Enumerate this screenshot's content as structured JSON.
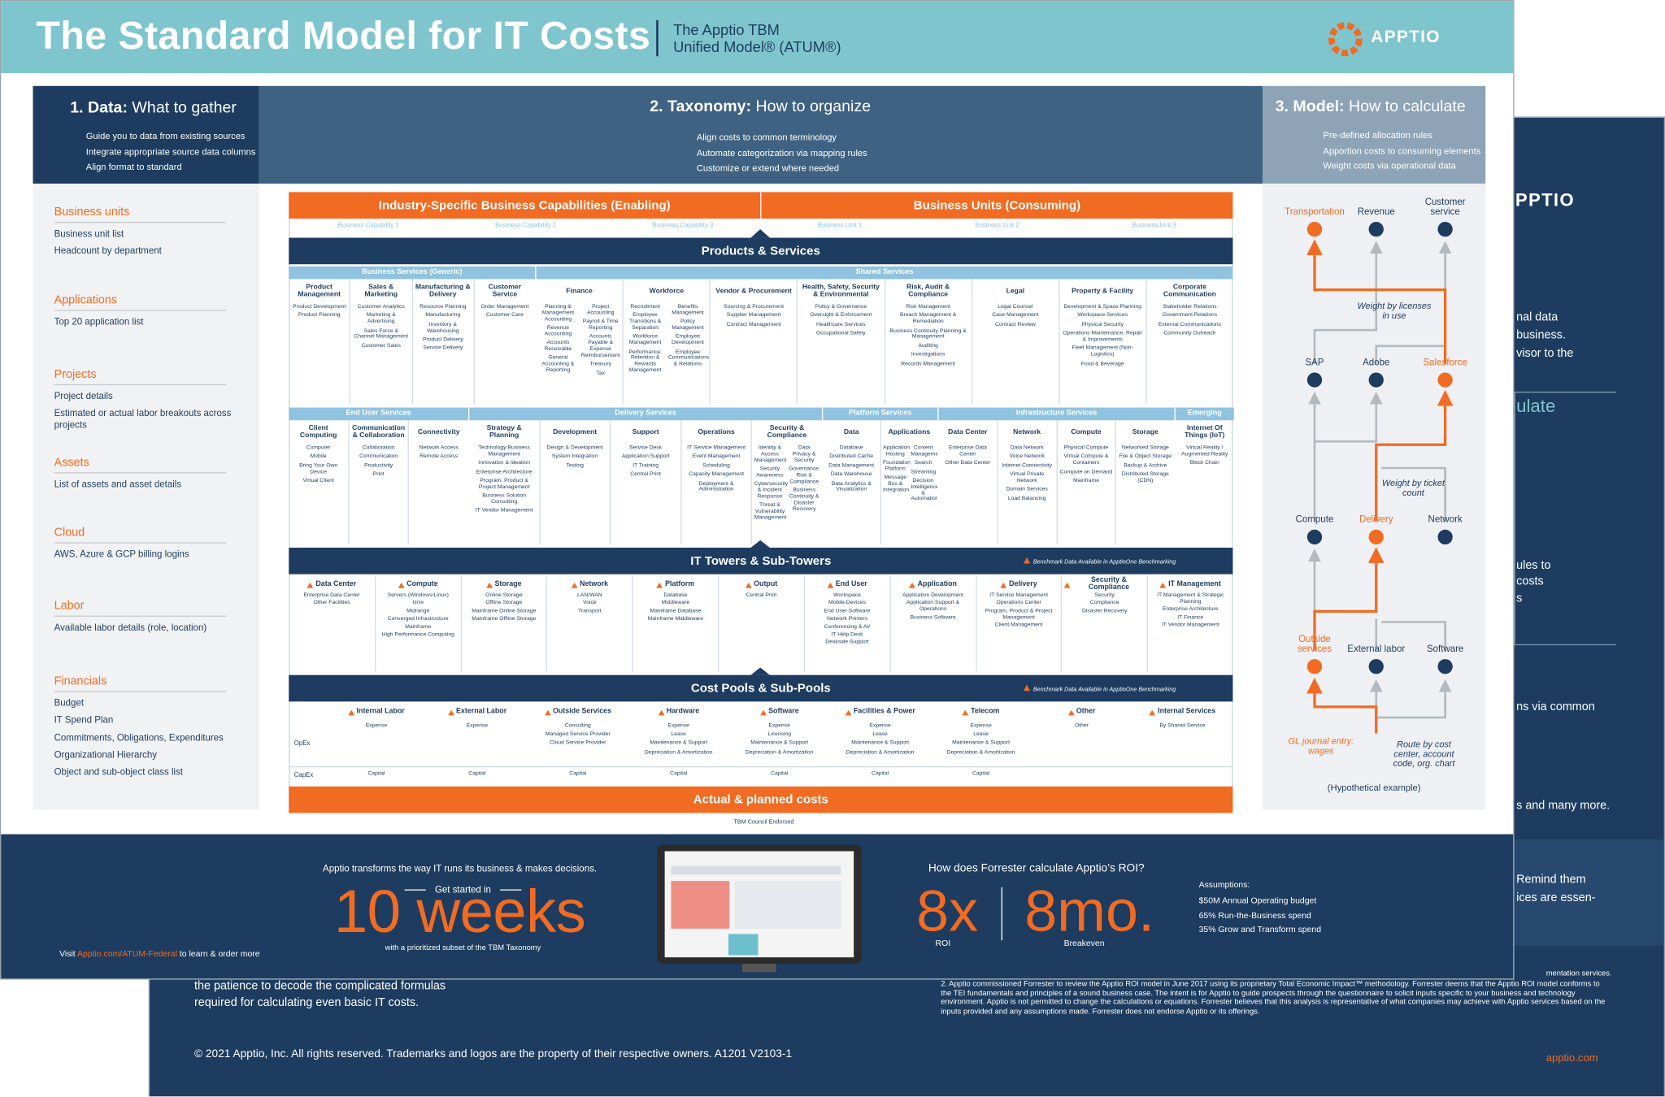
{
  "header": {
    "title": "The Standard Model for IT Costs",
    "subtitle": [
      "The Apptio TBM",
      "Unified Model® (ATUM®)"
    ],
    "logo": "APPTIO"
  },
  "panels": [
    {
      "number": "1. Data:",
      "title": "What to gather",
      "bullets": [
        "Guide you to data from existing sources",
        "Integrate appropriate source data columns",
        "Align format to standard"
      ]
    },
    {
      "number": "2. Taxonomy:",
      "title": "How to organize",
      "bullets": [
        "Align costs to common terminology",
        "Automate categorization via mapping rules",
        "Customize or extend where needed"
      ]
    },
    {
      "number": "3. Model:",
      "title": "How to calculate",
      "bullets": [
        "Pre-defined allocation rules",
        "Apportion costs to consuming elements",
        "Weight costs via operational data"
      ]
    }
  ],
  "data_sections": [
    {
      "heading": "Business units",
      "items": [
        "Business unit list",
        "Headcount by department"
      ]
    },
    {
      "heading": "Applications",
      "items": [
        "Top 20 application list"
      ]
    },
    {
      "heading": "Projects",
      "items": [
        "Project details",
        "Estimated or actual labor breakouts across projects"
      ]
    },
    {
      "heading": "Assets",
      "items": [
        "List of assets and asset details"
      ]
    },
    {
      "heading": "Cloud",
      "items": [
        "AWS, Azure & GCP billing logins"
      ]
    },
    {
      "heading": "Labor",
      "items": [
        "Available labor details (role, location)"
      ]
    },
    {
      "heading": "Financials",
      "items": [
        "Budget",
        "IT Spend Plan",
        "Commitments, Obligations, Expenditures",
        "Organizational Hierarchy",
        "Object and sub-object class list"
      ]
    }
  ],
  "taxonomy": {
    "enabling": "Industry-Specific Business Capabilities (Enabling)",
    "consuming": "Business Units (Consuming)",
    "capabilities": [
      "Business Capability 1",
      "Business Capability 2",
      "Business Capability 3"
    ],
    "units": [
      "Business Unit 1",
      "Business Unit 2",
      "Business Unit 3"
    ],
    "products_services": "Products & Services",
    "service_rows": [
      [
        {
          "name": "Business Services (Generic)",
          "columns": [
            {
              "name": "Product Management",
              "items": [
                "Product Development",
                "Product Planning"
              ]
            },
            {
              "name": "Sales & Marketing",
              "items": [
                "Customer Analytics",
                "Marketing & Advertising",
                "Sales Force & Channel Management",
                "Customer Sales"
              ]
            },
            {
              "name": "Manufacturing & Delivery",
              "items": [
                "Resource Planning",
                "Manufacturing",
                "Inventory & Warehousing",
                "Product Delivery",
                "Service Delivery"
              ]
            },
            {
              "name": "Customer Service",
              "items": [
                "Order Management",
                "Customer Care"
              ]
            }
          ]
        },
        {
          "name": "Shared Services",
          "columns": [
            {
              "name": "Finance",
              "items": [
                "Planning & Management Accounting",
                "Revenue Accounting",
                "Accounts Receivable",
                "General Accounting & Reporting",
                "Project Accounting",
                "Payroll & Time Reporting",
                "Accounts Payable & Expense Reimbursement",
                "Treasury",
                "Tax"
              ]
            },
            {
              "name": "Workforce",
              "items": [
                "Recruitment",
                "Employee Transitions & Separation",
                "Workforce Management",
                "Performance, Retention & Rewards Management",
                "Benefits Management",
                "Policy Management",
                "Employee Development",
                "Employee Communications & Relations"
              ]
            },
            {
              "name": "Vendor & Procurement",
              "items": [
                "Sourcing & Procurement",
                "Supplier Management",
                "Contract Management"
              ]
            },
            {
              "name": "Health, Safety, Security & Environmental",
              "items": [
                "Policy & Governance",
                "Oversight & Enforcement",
                "Healthcare Services",
                "Occupational Safety"
              ]
            },
            {
              "name": "Risk, Audit & Compliance",
              "items": [
                "Risk Management",
                "Breach Management & Remediation",
                "Business Continuity Planning & Management",
                "Auditing",
                "Investigations",
                "Records Management"
              ]
            },
            {
              "name": "Legal",
              "items": [
                "Legal Counsel",
                "Case Management",
                "Contract Review"
              ]
            },
            {
              "name": "Property & Facility",
              "items": [
                "Development & Space Planning",
                "Workspace Services",
                "Physical Security",
                "Operations Maintenance, Repair & Improvements",
                "Fleet Management (Non-Logistics)",
                "Food & Beverage"
              ]
            },
            {
              "name": "Corporate Communication",
              "items": [
                "Stakeholder Relations",
                "Government Relations",
                "External Communications",
                "Community Outreach"
              ]
            }
          ]
        }
      ],
      [
        {
          "name": "End User Services",
          "columns": [
            {
              "name": "Client Computing",
              "items": [
                "Computer",
                "Mobile",
                "Bring Your Own Device",
                "Virtual Client"
              ]
            },
            {
              "name": "Communication & Collaboration",
              "items": [
                "Collaboration",
                "Communication",
                "Productivity",
                "Print"
              ]
            },
            {
              "name": "Connectivity",
              "items": [
                "Network Access",
                "Remote Access"
              ]
            }
          ]
        },
        {
          "name": "Delivery Services",
          "columns": [
            {
              "name": "Strategy & Planning",
              "items": [
                "Technology Business Management",
                "Innovation & Ideation",
                "Enterprise Architecture",
                "Program, Product & Project Management",
                "Business Solution Consulting",
                "IT Vendor Management"
              ]
            },
            {
              "name": "Development",
              "items": [
                "Design & Development",
                "System Integration",
                "Testing"
              ]
            },
            {
              "name": "Support",
              "items": [
                "Service Desk",
                "Application Support",
                "IT Training",
                "Central Print"
              ]
            },
            {
              "name": "Operations",
              "items": [
                "IT Service Management",
                "Event Management",
                "Scheduling",
                "Capacity Management",
                "Deployment & Administration"
              ]
            },
            {
              "name": "Security & Compliance",
              "items": [
                "Identity & Access Management",
                "Security Awareness",
                "Cybersecurity & Incident Response",
                "Threat & Vulnerability Management",
                "Data Privacy & Security",
                "Governance, Risk & Compliance",
                "Business Continuity & Disaster Recovery"
              ]
            }
          ]
        },
        {
          "name": "Platform Services",
          "columns": [
            {
              "name": "Data",
              "items": [
                "Database",
                "Distributed Cache",
                "Data Management",
                "Data Warehouse",
                "Data Analytics & Visualization"
              ]
            },
            {
              "name": "Applications",
              "items": [
                "Application Hosting",
                "Foundation Platform",
                "Message Bus & Integration",
                "Content Management",
                "Search",
                "Streaming",
                "Decision Intelligence & Automation"
              ]
            }
          ]
        },
        {
          "name": "Infrastructure Services",
          "columns": [
            {
              "name": "Data Center",
              "items": [
                "Enterprise Data Center",
                "Other Data Center"
              ]
            },
            {
              "name": "Network",
              "items": [
                "Data Network",
                "Voice Network",
                "Internet Connectivity",
                "Virtual Private Network",
                "Domain Services",
                "Load Balancing"
              ]
            },
            {
              "name": "Compute",
              "items": [
                "Physical Compute",
                "Virtual Compute & Containers",
                "Compute on Demand",
                "Mainframe"
              ]
            },
            {
              "name": "Storage",
              "items": [
                "Networked Storage",
                "File & Object Storage",
                "Backup & Archive",
                "Distributed Storage (CDN)"
              ]
            }
          ]
        },
        {
          "name": "Emerging",
          "columns": [
            {
              "name": "Internet Of Things (IoT)",
              "items": [
                "Virtual Reality / Augmented Reality",
                "Block Chain"
              ]
            }
          ]
        }
      ]
    ],
    "it_towers": "IT Towers & Sub-Towers",
    "benchmark_note": "Benchmark Data Available in ApptioOne Benchmarking",
    "towers": [
      {
        "name": "Data Center",
        "items": [
          "Enterprise Data Center",
          "Other Facilities"
        ]
      },
      {
        "name": "Compute",
        "items": [
          "Servers (Windows/Linux)",
          "Unix",
          "Midrange",
          "Converged Infrastructure",
          "Mainframe",
          "High Performance Computing"
        ]
      },
      {
        "name": "Storage",
        "items": [
          "Online Storage",
          "Offline Storage",
          "Mainframe Online Storage",
          "Mainframe Offline Storage"
        ]
      },
      {
        "name": "Network",
        "items": [
          "LAN/WAN",
          "Voice",
          "Transport"
        ]
      },
      {
        "name": "Platform",
        "items": [
          "Database",
          "Middleware",
          "Mainframe Database",
          "Mainframe Middleware"
        ]
      },
      {
        "name": "Output",
        "items": [
          "Central Print"
        ]
      },
      {
        "name": "End User",
        "items": [
          "Workspace",
          "Mobile Devices",
          "End User Software",
          "Network Printers",
          "Conferencing & AV",
          "IT Help Desk",
          "Deskside Support"
        ]
      },
      {
        "name": "Application",
        "items": [
          "Application Development",
          "Application Support & Operations",
          "Business Software"
        ]
      },
      {
        "name": "Delivery",
        "items": [
          "IT Service Management",
          "Operations Center",
          "Program, Product & Project Management",
          "Client Management"
        ]
      },
      {
        "name": "Security & Compliance",
        "items": [
          "Security",
          "Compliance",
          "Disaster Recovery"
        ]
      },
      {
        "name": "IT Management",
        "items": [
          "IT Management & Strategic Planning",
          "Enterprise Architecture",
          "IT Finance",
          "IT Vendor Management"
        ]
      }
    ],
    "cost_pools": "Cost Pools & Sub-Pools",
    "opex_label": "OpEx",
    "capex_label": "CapEx",
    "pools": [
      {
        "name": "Internal Labor",
        "opex": [
          "Expense"
        ],
        "capex": [
          "Capital"
        ]
      },
      {
        "name": "External Labor",
        "opex": [
          "Expense"
        ],
        "capex": [
          "Capital"
        ]
      },
      {
        "name": "Outside Services",
        "opex": [
          "Consulting",
          "Managed Service Provider",
          "Cloud Service Provider"
        ],
        "capex": [
          "Capital"
        ]
      },
      {
        "name": "Hardware",
        "opex": [
          "Expense",
          "Lease",
          "Maintenance & Support",
          "Depreciation & Amortization"
        ],
        "capex": [
          "Capital"
        ]
      },
      {
        "name": "Software",
        "opex": [
          "Expense",
          "Licensing",
          "Maintenance & Support",
          "Depreciation & Amortization"
        ],
        "capex": [
          "Capital"
        ]
      },
      {
        "name": "Facilities & Power",
        "opex": [
          "Expense",
          "Lease",
          "Maintenance & Support",
          "Depreciation & Amortization"
        ],
        "capex": [
          "Capital"
        ]
      },
      {
        "name": "Telecom",
        "opex": [
          "Expense",
          "Lease",
          "Maintenance & Support",
          "Depreciation & Amortization"
        ],
        "capex": [
          "Capital"
        ]
      },
      {
        "name": "Other",
        "opex": [
          "Other"
        ],
        "capex": []
      },
      {
        "name": "Internal Services",
        "opex": [
          "By Shared Service"
        ],
        "capex": []
      }
    ],
    "actual_costs": "Actual & planned costs",
    "endorsed": "TBM Council Endorsed"
  },
  "model": {
    "nodes": [
      {
        "label": "Transportation",
        "color": "#f26b22"
      },
      {
        "label": "Revenue",
        "color": "#1d3c5f"
      },
      {
        "label": "Customer service",
        "color": "#1d3c5f"
      },
      {
        "label": "SAP",
        "color": "#1d3c5f"
      },
      {
        "label": "Adobe",
        "color": "#1d3c5f"
      },
      {
        "label": "Salesforce",
        "color": "#f26b22"
      },
      {
        "label": "Compute",
        "color": "#1d3c5f"
      },
      {
        "label": "Delivery",
        "color": "#f26b22"
      },
      {
        "label": "Network",
        "color": "#1d3c5f"
      },
      {
        "label": "Outside services",
        "color": "#f26b22"
      },
      {
        "label": "External labor",
        "color": "#1d3c5f"
      },
      {
        "label": "Software",
        "color": "#1d3c5f"
      }
    ],
    "notes": [
      "Weight by licenses in use",
      "Weight by ticket count",
      "GL journal entry: wages",
      "Route by cost center, account code, org. chart"
    ],
    "caption": "(Hypothetical example)"
  },
  "footer": {
    "tagline": "Apptio transforms the way IT runs its business & makes decisions.",
    "get_started": "Get started in",
    "big": "10 weeks",
    "subset": "with a prioritized subset of the TBM Taxonomy",
    "visit": [
      "Visit ",
      "Apptio.com/ATUM-Federal",
      " to learn & order more"
    ],
    "roi_question": "How does Forrester calculate Apptio’s ROI?",
    "roi": "8x",
    "roi_label": "ROI",
    "breakeven": "8mo.",
    "breakeven_label": "Breakeven",
    "assumptions_title": "Assumptions:",
    "assumptions": [
      "$50M Annual Operating budget",
      "65% Run-the-Business spend",
      "35% Grow and Transform spend"
    ]
  },
  "back_page": {
    "logo": "PPTIO",
    "fragments": [
      "nal data",
      "business.",
      "visor to the",
      "ulate",
      "ules to",
      "costs",
      "s",
      "ns via common",
      "s and many more.",
      "Remind them",
      "ices are essen-"
    ],
    "body": [
      "the patience to decode the complicated formulas",
      "required for calculating even basic IT costs."
    ],
    "footnote_1": "mentation services.",
    "footnote_2": "2. Apptio commissioned Forrester to review the Apptio ROI model in June 2017 using its proprietary Total Economic Impact™ methodology. Forrester deems that the Apptio ROI model conforms to the TEI fundamentals and principles of a sound business case. The intent is for Apptio to guide prospects through the questionnaire to solicit inputs specific to your business and technology environment. Apptio is not permitted to change the calculations or equations. Forrester believes that this analysis is representative of what companies may achieve with Apptio services based on the inputs provided and any assumptions made. Forrester does not endorse Apptio or its offerings.",
    "copyright": "© 2021 Apptio, Inc. All rights reserved. Trademarks and logos are the property of their respective owners. A1201  V2103-1",
    "url": "apptio.com"
  }
}
